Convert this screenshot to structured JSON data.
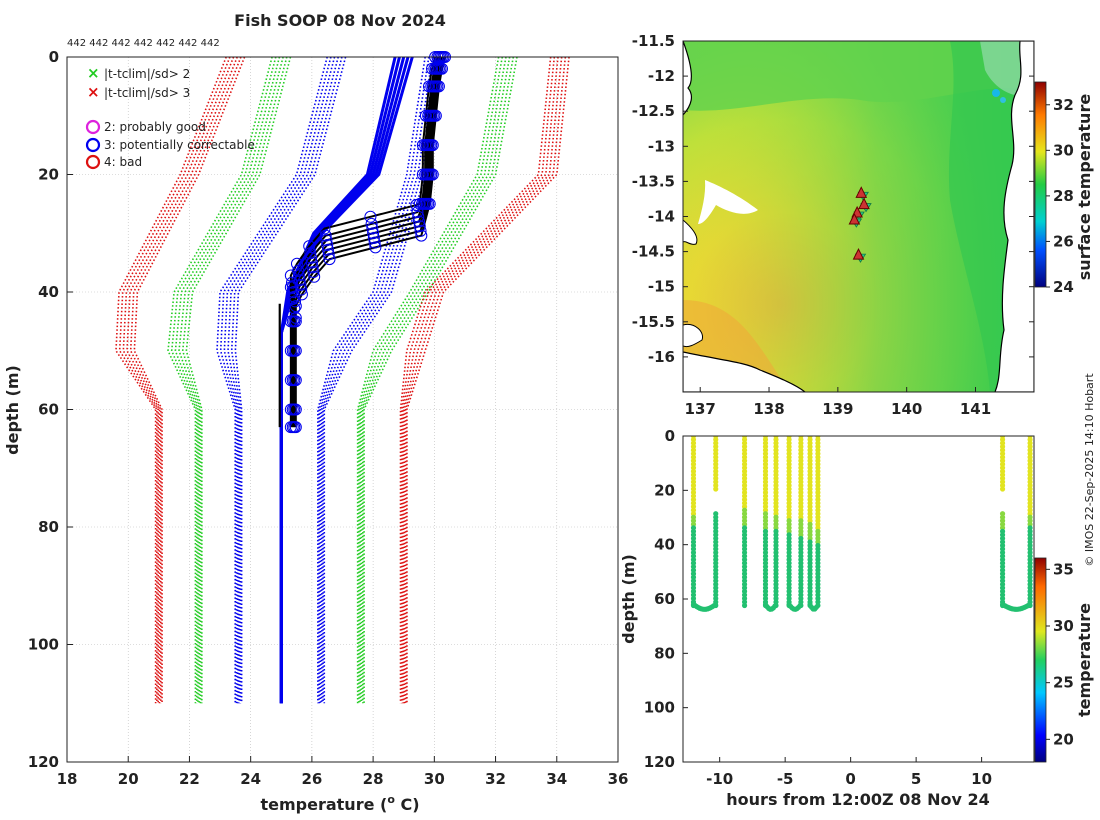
{
  "header": {
    "title": "Fish SOOP 08 Nov 2024",
    "counts_label": "442 442 442 442 442 442 442"
  },
  "legend": {
    "cross_green": "|t-tclim|/sd> 2",
    "cross_red": "|t-tclim|/sd> 3",
    "circle_magenta": "2: probably good",
    "circle_blue": "3: potentially correctable",
    "circle_red": "4: bad"
  },
  "colors": {
    "green": "#22cc22",
    "red": "#dd1111",
    "blue": "#0000ee",
    "magenta": "#dd22dd",
    "black": "#000000"
  },
  "credit": "© IMOS 22-Sep-2025 14:10 Hobart",
  "chart_data": [
    {
      "type": "line",
      "name": "profile",
      "xlabel": "temperature (",
      "xlabel_sup": "o",
      "xlabel_tail": " C)",
      "ylabel": "depth (m)",
      "xlim": [
        18,
        36
      ],
      "ylim": [
        120,
        0
      ],
      "xticks": [
        "18",
        "20",
        "22",
        "24",
        "26",
        "28",
        "30",
        "32",
        "34",
        "36"
      ],
      "yticks": [
        "0",
        "20",
        "40",
        "60",
        "80",
        "100",
        "120"
      ],
      "grid": true,
      "climatology": {
        "depths": [
          0,
          20,
          40,
          50,
          60,
          110
        ],
        "series": [
          {
            "name": "-3 sd",
            "color": "red",
            "temps": [
              23.5,
              22.0,
              20.0,
              19.9,
              21.0,
              21.0
            ]
          },
          {
            "name": "-2 sd",
            "color": "green",
            "temps": [
              25.0,
              24.0,
              21.8,
              21.6,
              22.3,
              22.3
            ]
          },
          {
            "name": "-1 sd",
            "color": "blue",
            "temps": [
              26.8,
              25.8,
              23.3,
              23.2,
              23.6,
              23.6
            ]
          },
          {
            "name": "+1 sd",
            "color": "blue",
            "temps": [
              30.0,
              29.4,
              28.3,
              27.0,
              26.3,
              26.3
            ]
          },
          {
            "name": "+2 sd",
            "color": "green",
            "temps": [
              32.4,
              31.7,
              29.5,
              28.3,
              27.6,
              27.6
            ]
          },
          {
            "name": "+3 sd",
            "color": "red",
            "temps": [
              34.1,
              33.7,
              30.0,
              29.4,
              29.0,
              29.0
            ]
          }
        ]
      },
      "mean_profile": {
        "depths": [
          0,
          20,
          30,
          40,
          47,
          110
        ],
        "temps": [
          29.0,
          28.0,
          26.2,
          25.3,
          25.0,
          25.0
        ]
      },
      "observed": {
        "depths": [
          0,
          2,
          5,
          10,
          15,
          20,
          25,
          28,
          30,
          32,
          35,
          38,
          40,
          42,
          45,
          50,
          55,
          60,
          63
        ],
        "temps": [
          30.2,
          30.1,
          30.0,
          29.9,
          29.8,
          29.8,
          29.7,
          29.5,
          28.0,
          26.5,
          26.0,
          25.6,
          25.4,
          25.4,
          25.4,
          25.4,
          25.4,
          25.4,
          25.4
        ]
      }
    },
    {
      "type": "heatmap",
      "name": "map",
      "colorbar_label": "surface temperature",
      "xticks": [
        "137",
        "138",
        "139",
        "140",
        "141"
      ],
      "yticks": [
        "-11.5",
        "-12",
        "-12.5",
        "-13",
        "-13.5",
        "-14",
        "-14.5",
        "-15",
        "-15.5",
        "-16"
      ],
      "xlim": [
        136.75,
        141.85
      ],
      "ylim": [
        -16.5,
        -11.5
      ],
      "cbar_ticks": [
        "24",
        "26",
        "28",
        "30",
        "32"
      ],
      "cbar_range": [
        24,
        33
      ],
      "stations": [
        {
          "lon": 139.34,
          "lat": -13.67
        },
        {
          "lon": 139.38,
          "lat": -13.83
        },
        {
          "lon": 139.28,
          "lat": -13.95
        },
        {
          "lon": 139.24,
          "lat": -14.05
        },
        {
          "lon": 139.3,
          "lat": -14.55
        }
      ]
    },
    {
      "type": "scatter",
      "name": "section",
      "xlabel": "hours from 12:00Z 08 Nov 24",
      "ylabel": "depth (m)",
      "colorbar_label": "temperature",
      "xticks": [
        "-10",
        "-5",
        "0",
        "5",
        "10"
      ],
      "yticks": [
        "0",
        "20",
        "40",
        "60",
        "80",
        "100",
        "120"
      ],
      "xlim": [
        -12.8,
        14
      ],
      "ylim": [
        120,
        0
      ],
      "cbar_ticks": [
        "20",
        "25",
        "30",
        "35"
      ],
      "cbar_range": [
        18,
        36
      ],
      "casts_hours": [
        -12.0,
        -10.3,
        -8.1,
        -6.5,
        -5.7,
        -4.7,
        -3.8,
        -3.1,
        -2.5,
        11.6,
        13.7
      ],
      "cast_tops": [
        0,
        20,
        27,
        28,
        29,
        30,
        31,
        32,
        34,
        28,
        0
      ],
      "bottom_depth": 63
    }
  ]
}
